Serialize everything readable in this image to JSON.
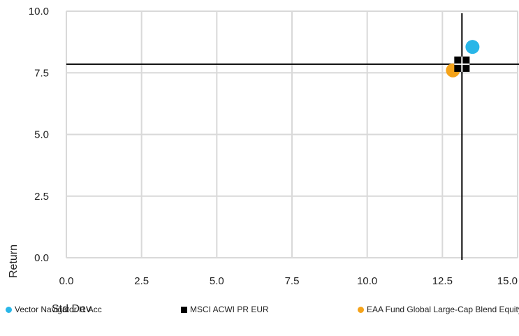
{
  "chart_data": {
    "type": "scatter",
    "xlabel": "Std Dev",
    "ylabel": "Return",
    "xlim": [
      0,
      15
    ],
    "ylim": [
      0,
      10
    ],
    "x_ticks": [
      "0.0",
      "2.5",
      "5.0",
      "7.5",
      "10.0",
      "12.5",
      "15.0"
    ],
    "y_ticks": [
      "0.0",
      "2.5",
      "5.0",
      "7.5",
      "10.0"
    ],
    "grid": true,
    "legend_position": "bottom",
    "series": [
      {
        "name": "Vector Navigator I1 Acc",
        "x": 13.5,
        "y": 8.55,
        "color": "#29b6e8",
        "marker": "circle"
      },
      {
        "name": "MSCI ACWI PR EUR",
        "x": 13.15,
        "y": 7.85,
        "color": "#000000",
        "marker": "square"
      },
      {
        "name": "EAA Fund Global Large-Cap Blend Equity",
        "x": 12.85,
        "y": 7.6,
        "color": "#f5a31a",
        "marker": "circle"
      }
    ],
    "reference_lines": {
      "x": 13.15,
      "y": 7.85
    }
  }
}
